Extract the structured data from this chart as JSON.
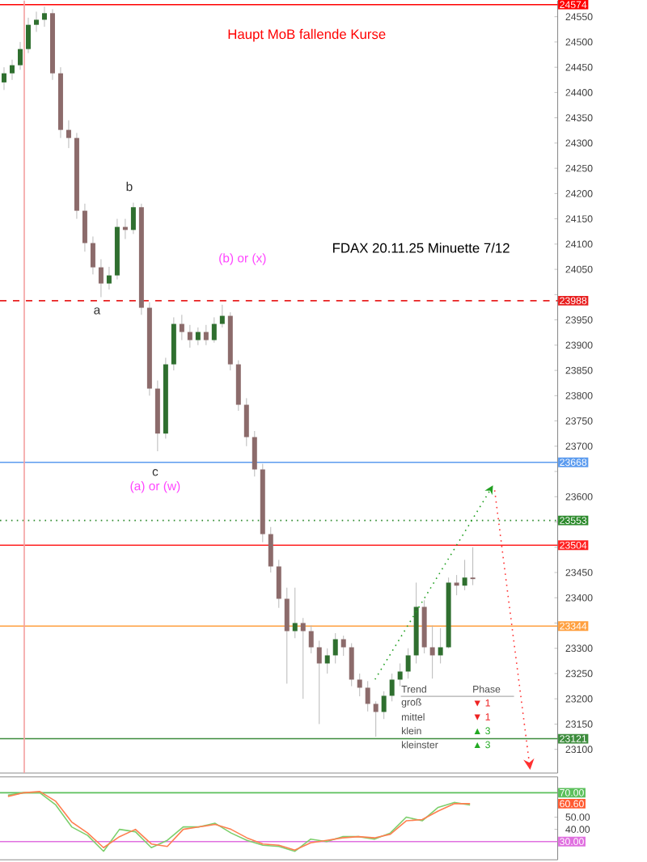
{
  "chart_data": [
    {
      "type": "candlestick",
      "title": "FDAX 20.11.25 Minuette 7/12",
      "subtitle": "Haupt MoB fallende Kurse",
      "categories": [
        null,
        null,
        null,
        null,
        null,
        null,
        null,
        null,
        null,
        null,
        null,
        null,
        null,
        null,
        null,
        null,
        null,
        null,
        null,
        null,
        null,
        null,
        null,
        null,
        null,
        null,
        null,
        null,
        null,
        null,
        null,
        null,
        null,
        null,
        null,
        null,
        null,
        null,
        null,
        null,
        null,
        null,
        null,
        null,
        null,
        null,
        null,
        null,
        null,
        null,
        null,
        null,
        null,
        null,
        null,
        null,
        null,
        null,
        null,
        null,
        null,
        null,
        null,
        null,
        null,
        null,
        null,
        null,
        null
      ],
      "ohlc": [
        [
          24420,
          24450,
          24405,
          24438
        ],
        [
          24438,
          24465,
          24425,
          24454
        ],
        [
          24454,
          24500,
          24445,
          24486
        ],
        [
          24486,
          24548,
          24478,
          24534
        ],
        [
          24534,
          24560,
          24520,
          24544
        ],
        [
          24544,
          24570,
          24530,
          24557
        ],
        [
          24557,
          24565,
          24425,
          24438
        ],
        [
          24438,
          24450,
          24310,
          24326
        ],
        [
          24326,
          24345,
          24290,
          24310
        ],
        [
          24310,
          24320,
          24150,
          24166
        ],
        [
          24166,
          24180,
          24085,
          24102
        ],
        [
          24102,
          24115,
          24040,
          24054
        ],
        [
          24054,
          24070,
          23995,
          24022
        ],
        [
          24022,
          24055,
          24010,
          24038
        ],
        [
          24038,
          24150,
          24030,
          24134
        ],
        [
          24134,
          24150,
          24110,
          24128
        ],
        [
          24128,
          24182,
          24120,
          24173
        ],
        [
          24173,
          24180,
          23960,
          23974
        ],
        [
          23974,
          23985,
          23800,
          23814
        ],
        [
          23814,
          23830,
          23690,
          23725
        ],
        [
          23725,
          23875,
          23715,
          23862
        ],
        [
          23862,
          23955,
          23850,
          23942
        ],
        [
          23942,
          23960,
          23910,
          23926
        ],
        [
          23926,
          23940,
          23895,
          23910
        ],
        [
          23910,
          23935,
          23900,
          23926
        ],
        [
          23926,
          23940,
          23900,
          23910
        ],
        [
          23910,
          23955,
          23905,
          23942
        ],
        [
          23942,
          23980,
          23935,
          23958
        ],
        [
          23958,
          23965,
          23850,
          23862
        ],
        [
          23862,
          23870,
          23770,
          23782
        ],
        [
          23782,
          23795,
          23700,
          23718
        ],
        [
          23718,
          23730,
          23640,
          23654
        ],
        [
          23654,
          23665,
          23510,
          23526
        ],
        [
          23526,
          23540,
          23450,
          23462
        ],
        [
          23462,
          23475,
          23380,
          23398
        ],
        [
          23398,
          23420,
          23230,
          23334
        ],
        [
          23334,
          23420,
          23320,
          23350
        ],
        [
          23350,
          23360,
          23200,
          23334
        ],
        [
          23334,
          23345,
          23290,
          23302
        ],
        [
          23302,
          23315,
          23150,
          23270
        ],
        [
          23270,
          23300,
          23250,
          23286
        ],
        [
          23286,
          23330,
          23270,
          23318
        ],
        [
          23318,
          23325,
          23285,
          23302
        ],
        [
          23302,
          23310,
          23225,
          23238
        ],
        [
          23238,
          23250,
          23205,
          23222
        ],
        [
          23222,
          23235,
          23175,
          23190
        ],
        [
          23190,
          23195,
          23125,
          23174
        ],
        [
          23174,
          23215,
          23160,
          23206
        ],
        [
          23206,
          23250,
          23195,
          23238
        ],
        [
          23238,
          23270,
          23225,
          23254
        ],
        [
          23254,
          23300,
          23240,
          23286
        ],
        [
          23286,
          23430,
          23270,
          23382
        ],
        [
          23382,
          23395,
          23290,
          23302
        ],
        [
          23302,
          23345,
          23240,
          23286
        ],
        [
          23286,
          23340,
          23270,
          23302
        ],
        [
          23302,
          23440,
          23300,
          23430
        ],
        [
          23430,
          23445,
          23405,
          23424
        ],
        [
          23424,
          23475,
          23415,
          23440
        ],
        [
          23440,
          23500,
          23425,
          23437
        ],
        null,
        null,
        null,
        null,
        null,
        null,
        null,
        null,
        null,
        null
      ],
      "ylim": [
        23053,
        24582
      ],
      "yticks": [
        23100,
        23150,
        23200,
        23250,
        23300,
        {
          "value": 23350,
          "label": null
        },
        23400,
        23450,
        {
          "value": 23500,
          "label": null
        },
        {
          "value": 23550,
          "label": null
        },
        23600,
        {
          "value": 23650,
          "label": null
        },
        23700,
        23750,
        23800,
        23850,
        23900,
        23950,
        {
          "value": 24000,
          "label": null
        },
        24050,
        24100,
        24150,
        24200,
        24250,
        24300,
        24350,
        24400,
        24450,
        24500,
        24550
      ],
      "tick_labels": "y",
      "ref_lines": [
        {
          "axis": "y",
          "value": 24574,
          "label": "24574",
          "color": "#ff0000"
        },
        {
          "axis": "y",
          "value": 23988,
          "label": "23988",
          "color": "#e82020",
          "line_style": "dashed"
        },
        {
          "axis": "y",
          "value": 23668,
          "label": "23668",
          "color": "#5b9bef"
        },
        {
          "axis": "y",
          "value": 23553,
          "label": "23553",
          "color": "#2e8b2e",
          "line_style": "dotted"
        },
        {
          "axis": "y",
          "value": 23504,
          "label": "23504",
          "color": "#ff2020"
        },
        {
          "axis": "y",
          "value": 23344,
          "label": "23344",
          "color": "#ffa040"
        },
        {
          "axis": "y",
          "value": 23121,
          "label": "23121",
          "color": "#3c8c3c"
        }
      ],
      "annotations": [
        "b",
        "a",
        "c",
        "(a) or (w)",
        "(b) or (x)",
        "Trend",
        "Phase",
        "groß",
        "▼ 1",
        "mittel",
        "▼ 1",
        "klein",
        "▲ 3",
        "kleinster",
        "▲ 3"
      ]
    },
    {
      "type": "line",
      "categories": [
        null,
        null,
        null,
        null,
        null,
        null,
        null,
        null,
        null,
        null,
        null,
        null,
        null,
        null,
        null,
        null,
        null,
        null,
        null,
        null,
        null,
        null,
        null,
        null,
        null,
        null,
        null,
        null,
        null,
        null,
        null,
        null,
        null,
        null,
        null
      ],
      "ylim": [
        15,
        83
      ],
      "yticks": [
        {
          "value": 40,
          "label": "40.00"
        },
        {
          "value": 50,
          "label": "50.00"
        }
      ],
      "tick_labels": "y",
      "series": [
        {
          "color": "#7ccf6c",
          "values": [
            68,
            70,
            70,
            60,
            42,
            35,
            22,
            40,
            38,
            25,
            31,
            42,
            42,
            45,
            37,
            31,
            27,
            26,
            22,
            32,
            30,
            34,
            34,
            32,
            37,
            50,
            47,
            58,
            62,
            60,
            null,
            null,
            null,
            null,
            null
          ]
        },
        {
          "color": "#ff7f50",
          "values": [
            67,
            70,
            71,
            63,
            46,
            37,
            25,
            34,
            40,
            28,
            26,
            40,
            42,
            44,
            40,
            33,
            28,
            27,
            23,
            29,
            31,
            33,
            34,
            33,
            36,
            47,
            48,
            55,
            61,
            61,
            null,
            null,
            null,
            null,
            null
          ]
        }
      ],
      "ref_lines": [
        {
          "axis": "y",
          "value": 70,
          "label": "70.00",
          "color": "#5cc05c"
        },
        {
          "axis": "y",
          "value": 30,
          "label": "30.00",
          "color": "#e070e0"
        }
      ],
      "annotations": [
        "60.60"
      ]
    }
  ]
}
